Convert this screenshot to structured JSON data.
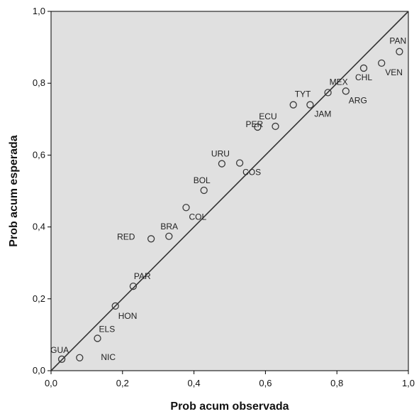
{
  "chart_data": {
    "type": "scatter",
    "title": "",
    "xlabel": "Prob acum observada",
    "ylabel": "Prob acum esperada",
    "xlim": [
      0,
      1
    ],
    "ylim": [
      0,
      1
    ],
    "x_ticks": [
      "0,0",
      "0,2",
      "0,4",
      "0,6",
      "0,8",
      "1,0"
    ],
    "y_ticks": [
      "0,0",
      "0,2",
      "0,4",
      "0,6",
      "0,8",
      "1,0"
    ],
    "grid": false,
    "legend": "none",
    "reference_line": "diagonal",
    "colors": {
      "plot_background": "#e0e0e0",
      "line": "#333333",
      "marker_stroke": "#3a3a3a"
    },
    "points": [
      {
        "label": "GUA",
        "x": 0.03,
        "y": 0.032
      },
      {
        "label": "NIC",
        "x": 0.08,
        "y": 0.036
      },
      {
        "label": "ELS",
        "x": 0.13,
        "y": 0.09
      },
      {
        "label": "HON",
        "x": 0.18,
        "y": 0.18
      },
      {
        "label": "PAR",
        "x": 0.23,
        "y": 0.235
      },
      {
        "label": "RED",
        "x": 0.28,
        "y": 0.367
      },
      {
        "label": "BRA",
        "x": 0.33,
        "y": 0.374
      },
      {
        "label": "COL",
        "x": 0.378,
        "y": 0.454
      },
      {
        "label": "BOL",
        "x": 0.428,
        "y": 0.502
      },
      {
        "label": "URU",
        "x": 0.478,
        "y": 0.576
      },
      {
        "label": "COS",
        "x": 0.528,
        "y": 0.578
      },
      {
        "label": "ECU",
        "x": 0.578,
        "y": 0.678
      },
      {
        "label": "PER",
        "x": 0.628,
        "y": 0.68
      },
      {
        "label": "TYT",
        "x": 0.678,
        "y": 0.74
      },
      {
        "label": "JAM",
        "x": 0.725,
        "y": 0.74
      },
      {
        "label": "MEX",
        "x": 0.775,
        "y": 0.774
      },
      {
        "label": "ARG",
        "x": 0.825,
        "y": 0.778
      },
      {
        "label": "CHL",
        "x": 0.875,
        "y": 0.842
      },
      {
        "label": "VEN",
        "x": 0.925,
        "y": 0.856
      },
      {
        "label": "PAN",
        "x": 0.975,
        "y": 0.888
      }
    ]
  }
}
